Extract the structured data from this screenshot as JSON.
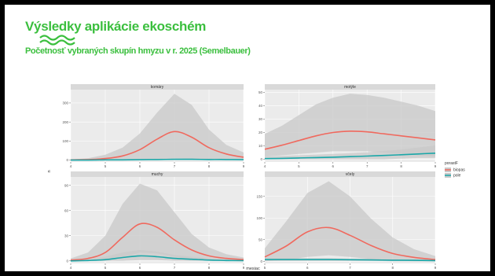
{
  "slide": {
    "title": "Výsledky aplikácie ekoschém",
    "subtitle": "Početnosť vybraných skupín hmyzu v r. 2025 (Semelbauer)"
  },
  "colors": {
    "title_green": "#3bbf3e",
    "panel_bg": "#ebebeb",
    "strip_bg": "#d9d9d9",
    "ribbon": "#c8c8c8",
    "series_biopas": "#f0695e",
    "series_pole": "#1aa7a8"
  },
  "chart_data": {
    "type": "line",
    "xlabel": "mesiac",
    "ylabel": "n",
    "legend": {
      "title": "porastF",
      "position": "right",
      "items": [
        "biopas",
        "pole"
      ]
    },
    "grid": true,
    "facets": [
      {
        "label": "komáry",
        "x": [
          4,
          4.5,
          5,
          5.5,
          6,
          6.5,
          7,
          7.5,
          8,
          8.5,
          9
        ],
        "xlim": [
          4,
          9
        ],
        "xticks": [
          4,
          5,
          6,
          7,
          8,
          9
        ],
        "ylim": [
          -10,
          370
        ],
        "yticks": [
          0,
          100,
          200,
          300
        ],
        "series": [
          {
            "name": "biopas",
            "values": [
              1,
              3,
              8,
              22,
              55,
              110,
              150,
              120,
              65,
              32,
              15
            ],
            "upper": [
              3,
              10,
              28,
              65,
              140,
              250,
              348,
              290,
              160,
              80,
              40
            ],
            "lower": [
              0,
              0,
              0,
              0,
              2,
              5,
              10,
              8,
              4,
              2,
              1
            ]
          },
          {
            "name": "pole",
            "values": [
              0,
              0,
              1,
              1,
              2,
              3,
              4,
              4,
              3,
              3,
              2
            ],
            "upper": [
              1,
              1,
              2,
              3,
              5,
              7,
              9,
              9,
              8,
              7,
              5
            ],
            "lower": [
              0,
              0,
              0,
              0,
              0,
              0,
              0,
              0,
              0,
              0,
              0
            ]
          }
        ]
      },
      {
        "label": "motýle",
        "x": [
          4,
          4.5,
          5,
          5.5,
          6,
          6.5,
          7,
          7.5,
          8,
          8.5,
          9
        ],
        "xlim": [
          4,
          9
        ],
        "xticks": [
          4,
          5,
          6,
          7,
          8,
          9
        ],
        "ylim": [
          -2,
          52
        ],
        "yticks": [
          0,
          10,
          20,
          30,
          40,
          50
        ],
        "series": [
          {
            "name": "biopas",
            "values": [
              7.5,
              10.5,
              14,
              17.5,
              20,
              21,
              20.5,
              19,
              17.5,
              16,
              14.5
            ],
            "upper": [
              19,
              25,
              33,
              41,
              46,
              49,
              48,
              46,
              43,
              40,
              36
            ],
            "lower": [
              2,
              3,
              4,
              5,
              6,
              6,
              6,
              5,
              4,
              3,
              2
            ]
          },
          {
            "name": "pole",
            "values": [
              0.5,
              0.7,
              1,
              1.3,
              1.6,
              2,
              2.4,
              2.9,
              3.4,
              4,
              4.6
            ],
            "upper": [
              2,
              2.5,
              3,
              3.5,
              4,
              4.6,
              5.3,
              6.2,
              7.3,
              8.7,
              10.5
            ],
            "lower": [
              0,
              0,
              0,
              0,
              0,
              0,
              0,
              0,
              0.5,
              1,
              1
            ]
          }
        ]
      },
      {
        "label": "muchy",
        "x": [
          4,
          4.5,
          5,
          5.5,
          6,
          6.5,
          7,
          7.5,
          8,
          8.5,
          9
        ],
        "xlim": [
          4,
          9
        ],
        "xticks": [
          4,
          5,
          6,
          7,
          8,
          9
        ],
        "ylim": [
          -3,
          100
        ],
        "yticks": [
          0,
          30,
          60,
          90
        ],
        "series": [
          {
            "name": "biopas",
            "values": [
              1,
              3,
              10,
              28,
              44,
              40,
              25,
              13,
              6,
              3,
              1.5
            ],
            "upper": [
              3,
              10,
              30,
              68,
              92,
              84,
              58,
              32,
              16,
              8,
              4
            ],
            "lower": [
              0,
              0,
              0,
              4,
              10,
              9,
              5,
              2,
              0,
              0,
              0
            ]
          },
          {
            "name": "pole",
            "values": [
              0,
              0.5,
              1.5,
              4,
              6,
              5,
              3,
              2,
              1,
              0.5,
              0.3
            ],
            "upper": [
              1,
              2,
              5,
              10,
              13,
              11,
              7,
              5,
              3,
              2,
              1
            ],
            "lower": [
              0,
              0,
              0,
              0,
              1,
              1,
              0,
              0,
              0,
              0,
              0
            ]
          }
        ]
      },
      {
        "label": "včely",
        "x": [
          5,
          5.5,
          6,
          6.5,
          7,
          7.5,
          8,
          8.5,
          9
        ],
        "xlim": [
          5,
          9
        ],
        "xticks": [
          5,
          6,
          7,
          8,
          9
        ],
        "ylim": [
          -5,
          195
        ],
        "yticks": [
          0,
          50,
          100,
          150
        ],
        "series": [
          {
            "name": "biopas",
            "values": [
              10,
              35,
              68,
              78,
              60,
              36,
              18,
              9,
              4
            ],
            "upper": [
              30,
              92,
              158,
              185,
              150,
              98,
              55,
              28,
              12
            ],
            "lower": [
              0,
              3,
              10,
              14,
              10,
              5,
              2,
              0,
              0
            ]
          },
          {
            "name": "pole",
            "values": [
              4,
              4,
              4,
              4,
              3.5,
              3,
              2.5,
              2,
              1.5
            ],
            "upper": [
              7,
              7,
              7,
              7,
              6,
              6,
              5,
              4,
              3
            ],
            "lower": [
              1,
              1,
              1,
              1,
              1,
              1,
              0,
              0,
              0
            ]
          }
        ]
      }
    ]
  }
}
